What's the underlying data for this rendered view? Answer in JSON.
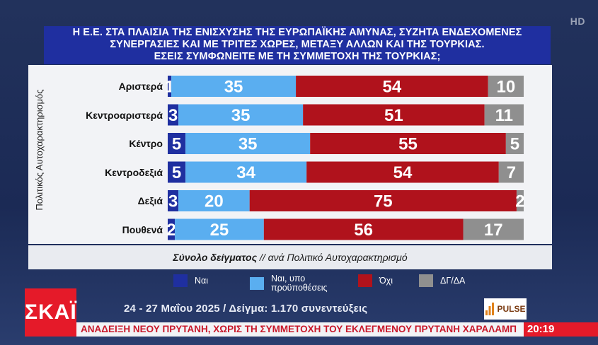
{
  "title_lines": [
    "Η Ε.Ε. ΣΤΑ ΠΛΑΙΣΙΑ ΤΗΣ ΕΝΙΣΧΥΣΗΣ ΤΗΣ ΕΥΡΩΠΑΪΚΗΣ ΑΜΥΝΑΣ, ΣΥΖΗΤΑ ΕΝΔΕΧΟΜΕΝΕΣ",
    "ΣΥΝΕΡΓΑΣΙΕΣ ΚΑΙ ΜΕ ΤΡΙΤΕΣ ΧΩΡΕΣ, ΜΕΤΑΞΥ ΑΛΛΩΝ ΚΑΙ ΤΗΣ ΤΟΥΡΚΙΑΣ.",
    "ΕΣΕΙΣ ΣΥΜΦΩΝΕΙΤΕ ΜΕ ΤΗ ΣΥΜΜΕΤΟΧΗ ΤΗΣ ΤΟΥΡΚΙΑΣ;"
  ],
  "hd_badge": "HD",
  "footer": {
    "bold": "Σύνολο δείγματος",
    "sep": " // ",
    "rest": "ανά Πολιτικό Αυτοχαρακτηρισμό"
  },
  "dates": "24 - 27 Μαΐου 2025 / Δείγμα: 1.170 συνεντεύξεις",
  "channel_logo": "ΣΚΑΪ",
  "pollster_logo": "PULSE",
  "ticker": "ΑΝΑΔΕΙΞΗ ΝΕΟΥ ΠΡΥΤΑΝΗ, ΧΩΡΙΣ ΤΗ ΣΥΜΜΕΤΟΧΗ ΤΟΥ ΕΚΛΕΓΜΕΝΟΥ ΠΡΥΤΑΝΗ ΧΑΡΑΛΑΜΠ",
  "clock": "20:19",
  "colors": {
    "yes": "#1f2fa0",
    "yes_conditional": "#5aaef0",
    "no": "#b0121c",
    "dk": "#8f8f8f"
  },
  "chart_data": {
    "type": "bar",
    "orientation": "horizontal",
    "stacked": true,
    "ylabel": "Πολιτικός Αυτοχαρακτηρισμός",
    "categories": [
      "Αριστερά",
      "Κεντροαριστερά",
      "Κέντρο",
      "Κεντροδεξιά",
      "Δεξιά",
      "Πουθενά"
    ],
    "series": [
      {
        "name": "Ναι",
        "color": "#1f2fa0",
        "values": [
          1,
          3,
          5,
          5,
          3,
          2
        ]
      },
      {
        "name": "Ναι, υπο προϋποθέσεις",
        "color": "#5aaef0",
        "values": [
          35,
          35,
          35,
          34,
          20,
          25
        ]
      },
      {
        "name": "Όχι",
        "color": "#b0121c",
        "values": [
          54,
          51,
          55,
          54,
          75,
          56
        ]
      },
      {
        "name": "ΔΓ/ΔΑ",
        "color": "#8f8f8f",
        "values": [
          10,
          11,
          5,
          7,
          2,
          17
        ]
      }
    ],
    "legend_position": "bottom",
    "grid": false
  }
}
